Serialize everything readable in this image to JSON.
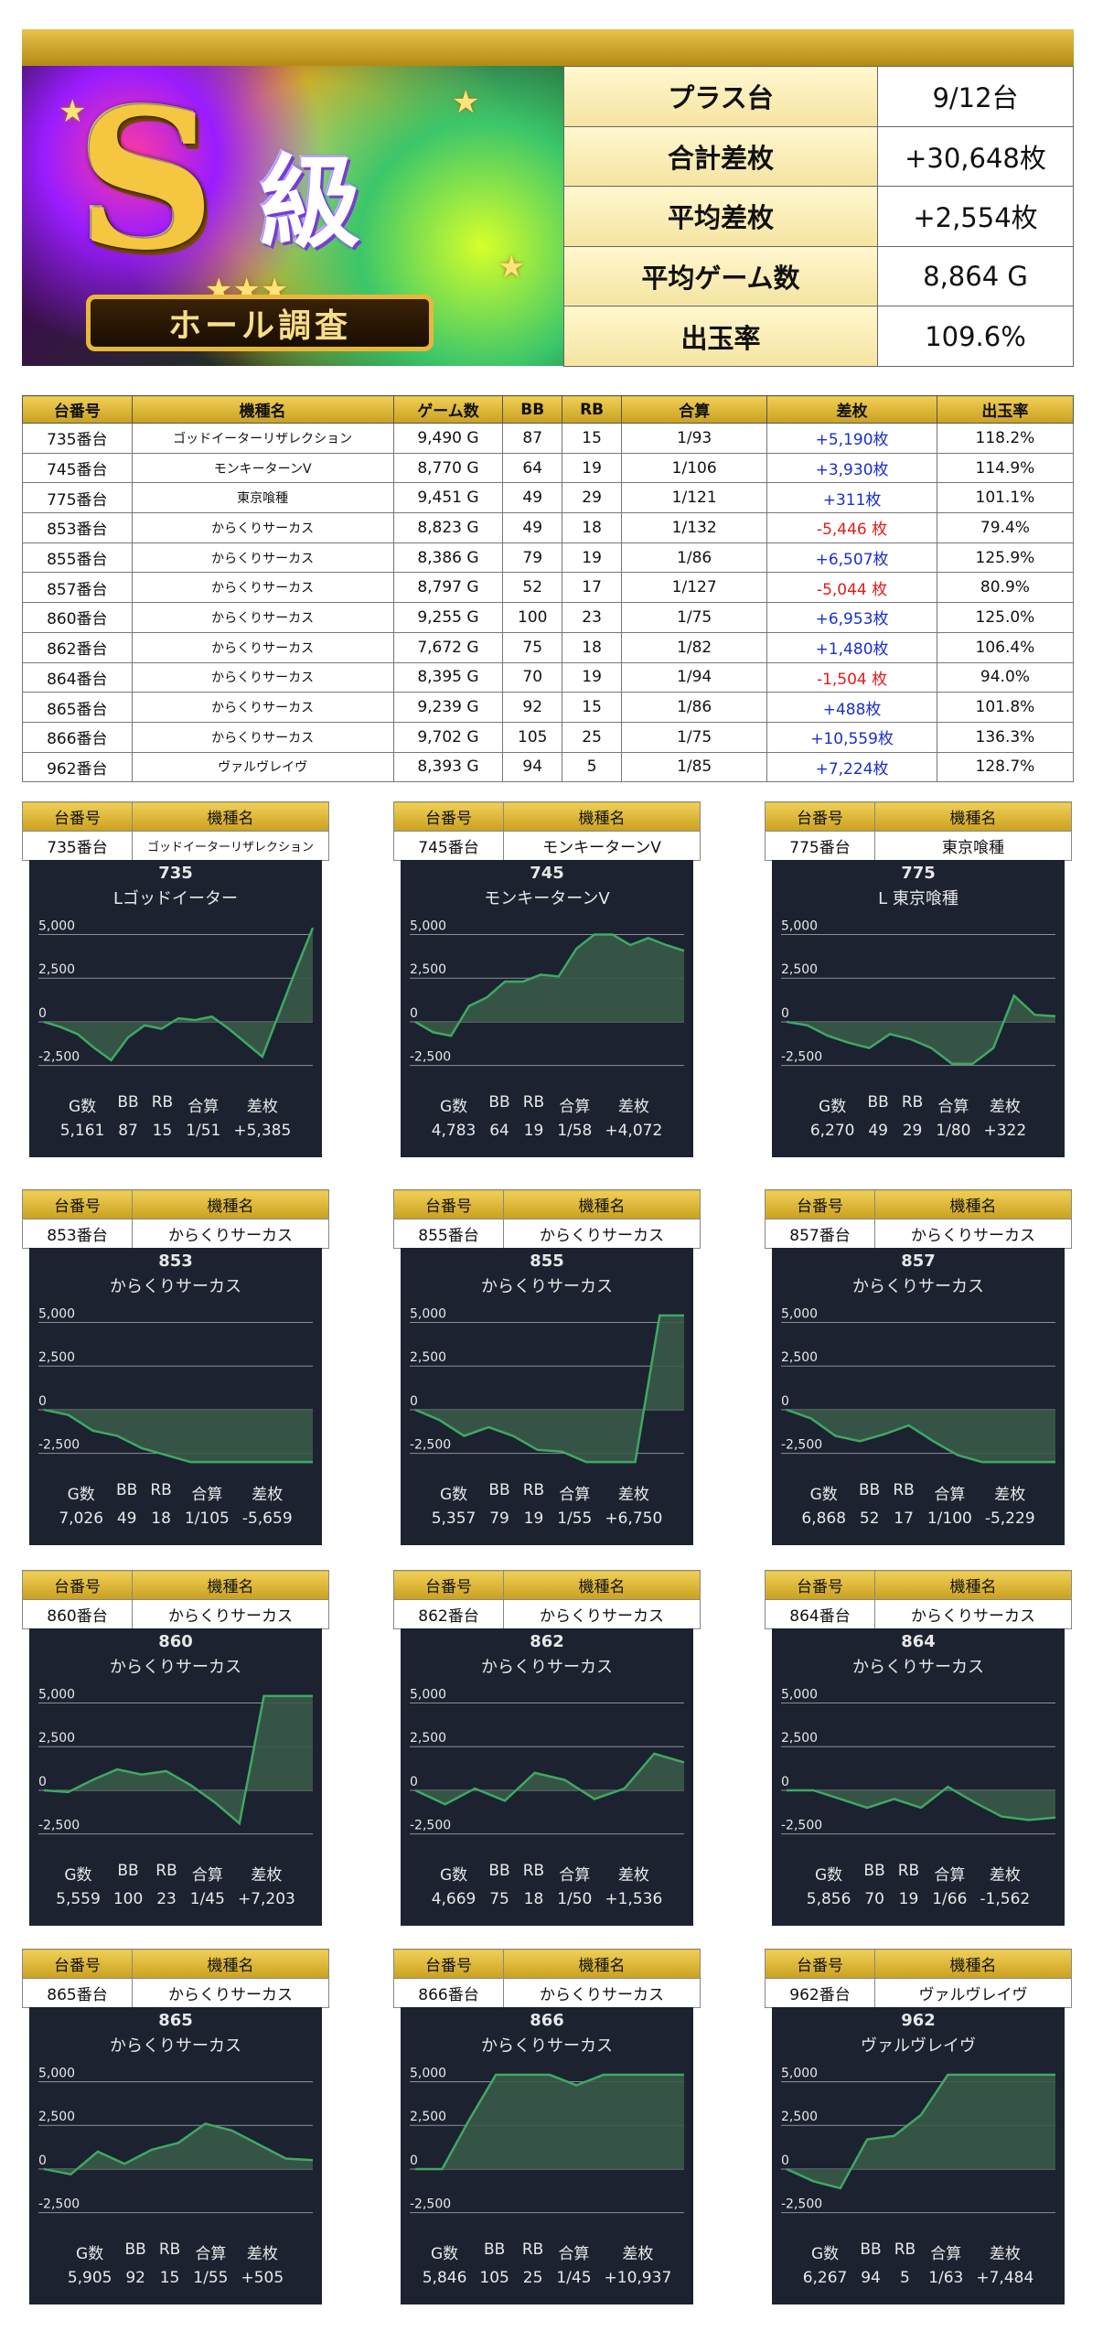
{
  "banner": {
    "big_letter": "S",
    "kyu": "級",
    "ribbon": "ホール調査"
  },
  "summary": [
    {
      "label": "プラス台",
      "value": "9/12台"
    },
    {
      "label": "合計差枚",
      "value": "+30,648枚"
    },
    {
      "label": "平均差枚",
      "value": "+2,554枚"
    },
    {
      "label": "平均ゲーム数",
      "value": "8,864 G"
    },
    {
      "label": "出玉率",
      "value": "109.6%"
    }
  ],
  "table": {
    "headers": [
      "台番号",
      "機種名",
      "ゲーム数",
      "BB",
      "RB",
      "合算",
      "差枚",
      "出玉率"
    ],
    "rows": [
      [
        "735番台",
        "ゴッドイーターリザレクション",
        "9,490 G",
        "87",
        "15",
        "1/93",
        "+5,190枚",
        "118.2%"
      ],
      [
        "745番台",
        "モンキーターンV",
        "8,770 G",
        "64",
        "19",
        "1/106",
        "+3,930枚",
        "114.9%"
      ],
      [
        "775番台",
        "東京喰種",
        "9,451 G",
        "49",
        "29",
        "1/121",
        "+311枚",
        "101.1%"
      ],
      [
        "853番台",
        "からくりサーカス",
        "8,823 G",
        "49",
        "18",
        "1/132",
        "-5,446 枚",
        "79.4%"
      ],
      [
        "855番台",
        "からくりサーカス",
        "8,386 G",
        "79",
        "19",
        "1/86",
        "+6,507枚",
        "125.9%"
      ],
      [
        "857番台",
        "からくりサーカス",
        "8,797 G",
        "52",
        "17",
        "1/127",
        "-5,044 枚",
        "80.9%"
      ],
      [
        "860番台",
        "からくりサーカス",
        "9,255 G",
        "100",
        "23",
        "1/75",
        "+6,953枚",
        "125.0%"
      ],
      [
        "862番台",
        "からくりサーカス",
        "7,672 G",
        "75",
        "18",
        "1/82",
        "+1,480枚",
        "106.4%"
      ],
      [
        "864番台",
        "からくりサーカス",
        "8,395 G",
        "70",
        "19",
        "1/94",
        "-1,504 枚",
        "94.0%"
      ],
      [
        "865番台",
        "からくりサーカス",
        "9,239 G",
        "92",
        "15",
        "1/86",
        "+488枚",
        "101.8%"
      ],
      [
        "866番台",
        "からくりサーカス",
        "9,702 G",
        "105",
        "25",
        "1/75",
        "+10,559枚",
        "136.3%"
      ],
      [
        "962番台",
        "ヴァルヴレイヴ",
        "8,393 G",
        "94",
        "5",
        "1/85",
        "+7,224枚",
        "128.7%"
      ]
    ]
  },
  "card_labels": {
    "machine_no": "台番号",
    "model": "機種名",
    "stat_headers": [
      "G数",
      "BB",
      "RB",
      "合算",
      "差枚"
    ]
  },
  "chart_data": [
    {
      "type": "line",
      "machine": "735番台",
      "number": "735",
      "title": "Lゴッドイーター",
      "header_model": "ゴッドイーターリザレクション",
      "yticks": [
        "5,000",
        "2,500",
        "0",
        "-2,500"
      ],
      "ylim": [
        -3200,
        5500
      ],
      "values": [
        0,
        -300,
        -700,
        -1500,
        -2200,
        -900,
        -200,
        -400,
        200,
        100,
        300,
        -400,
        -1200,
        -2000,
        500,
        3000,
        5385
      ],
      "stats": [
        "5,161",
        "87",
        "15",
        "1/51",
        "+5,385"
      ]
    },
    {
      "type": "line",
      "machine": "745番台",
      "number": "745",
      "title": "モンキーターンV",
      "header_model": "モンキーターンV",
      "yticks": [
        "5,000",
        "2,500",
        "0",
        "-2,500"
      ],
      "ylim": [
        -3200,
        5500
      ],
      "values": [
        0,
        -600,
        -800,
        900,
        1400,
        2300,
        2300,
        2700,
        2600,
        4200,
        5000,
        5000,
        4400,
        4800,
        4400,
        4072
      ],
      "stats": [
        "4,783",
        "64",
        "19",
        "1/58",
        "+4,072"
      ]
    },
    {
      "type": "line",
      "machine": "775番台",
      "number": "775",
      "title": "L 東京喰種",
      "header_model": "東京喰種",
      "yticks": [
        "5,000",
        "2,500",
        "0",
        "-2,500"
      ],
      "ylim": [
        -3200,
        5500
      ],
      "values": [
        0,
        -200,
        -800,
        -1200,
        -1500,
        -700,
        -1000,
        -1500,
        -2400,
        -2400,
        -1500,
        1500,
        400,
        322
      ],
      "stats": [
        "6,270",
        "49",
        "29",
        "1/80",
        "+322"
      ]
    },
    {
      "type": "line",
      "machine": "853番台",
      "number": "853",
      "title": "からくりサーカス",
      "header_model": "からくりサーカス",
      "yticks": [
        "5,000",
        "2,500",
        "0",
        "-2,500"
      ],
      "ylim": [
        -3200,
        5500
      ],
      "values": [
        0,
        -300,
        -1200,
        -1500,
        -2200,
        -2600,
        -3000,
        -3000,
        -3000,
        -3000,
        -3000,
        -3000
      ],
      "stats": [
        "7,026",
        "49",
        "18",
        "1/105",
        "-5,659"
      ]
    },
    {
      "type": "line",
      "machine": "855番台",
      "number": "855",
      "title": "からくりサーカス",
      "header_model": "からくりサーカス",
      "yticks": [
        "5,000",
        "2,500",
        "0",
        "-2,500"
      ],
      "ylim": [
        -3200,
        5500
      ],
      "values": [
        0,
        -600,
        -1500,
        -1000,
        -1500,
        -2300,
        -2400,
        -3000,
        -3000,
        -3000,
        5400,
        5400
      ],
      "stats": [
        "5,357",
        "79",
        "19",
        "1/55",
        "+6,750"
      ]
    },
    {
      "type": "line",
      "machine": "857番台",
      "number": "857",
      "title": "からくりサーカス",
      "header_model": "からくりサーカス",
      "yticks": [
        "5,000",
        "2,500",
        "0",
        "-2,500"
      ],
      "ylim": [
        -3200,
        5500
      ],
      "values": [
        0,
        -500,
        -1500,
        -1800,
        -1400,
        -900,
        -1800,
        -2600,
        -3000,
        -3000,
        -3000,
        -3000
      ],
      "stats": [
        "6,868",
        "52",
        "17",
        "1/100",
        "-5,229"
      ]
    },
    {
      "type": "line",
      "machine": "860番台",
      "number": "860",
      "title": "からくりサーカス",
      "header_model": "からくりサーカス",
      "yticks": [
        "5,000",
        "2,500",
        "0",
        "-2,500"
      ],
      "ylim": [
        -3200,
        5500
      ],
      "values": [
        0,
        -100,
        600,
        1200,
        900,
        1100,
        300,
        -700,
        -1900,
        5400,
        5400,
        5400
      ],
      "stats": [
        "5,559",
        "100",
        "23",
        "1/45",
        "+7,203"
      ]
    },
    {
      "type": "line",
      "machine": "862番台",
      "number": "862",
      "title": "からくりサーカス",
      "header_model": "からくりサーカス",
      "yticks": [
        "5,000",
        "2,500",
        "0",
        "-2,500"
      ],
      "ylim": [
        -3200,
        5500
      ],
      "values": [
        0,
        -800,
        100,
        -600,
        1000,
        600,
        -500,
        100,
        2100,
        1600
      ],
      "stats": [
        "4,669",
        "75",
        "18",
        "1/50",
        "+1,536"
      ]
    },
    {
      "type": "line",
      "machine": "864番台",
      "number": "864",
      "title": "からくりサーカス",
      "header_model": "からくりサーカス",
      "yticks": [
        "5,000",
        "2,500",
        "0",
        "-2,500"
      ],
      "ylim": [
        -3200,
        5500
      ],
      "values": [
        0,
        0,
        -500,
        -1000,
        -500,
        -1000,
        200,
        -700,
        -1500,
        -1700,
        -1562
      ],
      "stats": [
        "5,856",
        "70",
        "19",
        "1/66",
        "-1,562"
      ]
    },
    {
      "type": "line",
      "machine": "865番台",
      "number": "865",
      "title": "からくりサーカス",
      "header_model": "からくりサーカス",
      "yticks": [
        "5,000",
        "2,500",
        "0",
        "-2,500"
      ],
      "ylim": [
        -3200,
        5500
      ],
      "values": [
        0,
        -300,
        1000,
        300,
        1100,
        1500,
        2600,
        2200,
        1400,
        600,
        505
      ],
      "stats": [
        "5,905",
        "92",
        "15",
        "1/55",
        "+505"
      ]
    },
    {
      "type": "line",
      "machine": "866番台",
      "number": "866",
      "title": "からくりサーカス",
      "header_model": "からくりサーカス",
      "yticks": [
        "5,000",
        "2,500",
        "0",
        "-2,500"
      ],
      "ylim": [
        -3200,
        5500
      ],
      "values": [
        0,
        0,
        2800,
        5400,
        5400,
        5400,
        4800,
        5400,
        5400,
        5400,
        5400
      ],
      "stats": [
        "5,846",
        "105",
        "25",
        "1/45",
        "+10,937"
      ]
    },
    {
      "type": "line",
      "machine": "962番台",
      "number": "962",
      "title": "ヴァルヴレイヴ",
      "header_model": "ヴァルヴレイヴ",
      "yticks": [
        "5,000",
        "2,500",
        "0",
        "-2,500"
      ],
      "ylim": [
        -3200,
        5500
      ],
      "values": [
        0,
        -700,
        -1100,
        1700,
        1900,
        3100,
        5400,
        5400,
        5400,
        5400,
        5400
      ],
      "stats": [
        "6,267",
        "94",
        "5",
        "1/63",
        "+7,484"
      ]
    }
  ],
  "colors": {
    "gold": "#d9b23a",
    "panel": "#1c2230",
    "line": "#3fa865",
    "fill": "#3a5a48",
    "positive": "#1a2fd0",
    "negative": "#e21b1b"
  }
}
